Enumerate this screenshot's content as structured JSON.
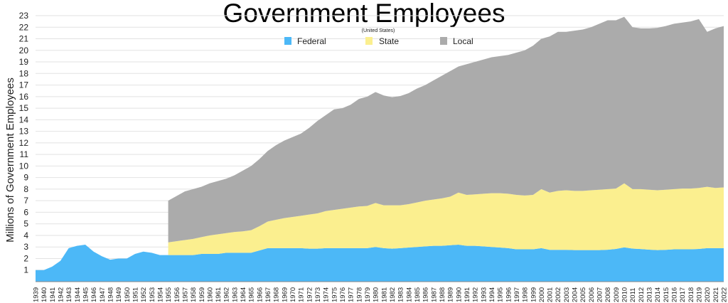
{
  "chart_data": {
    "type": "area",
    "stacked": true,
    "title": "Government Employees",
    "subtitle": "(United States)",
    "xlabel": "",
    "ylabel": "Millions of Government Employees",
    "ylim": [
      0,
      23
    ],
    "yticks": [
      1,
      2,
      3,
      4,
      5,
      6,
      7,
      8,
      9,
      10,
      11,
      12,
      13,
      14,
      15,
      16,
      17,
      18,
      19,
      20,
      21,
      22,
      23
    ],
    "grid": true,
    "legend": "top-center",
    "x": [
      1939,
      1940,
      1941,
      1942,
      1943,
      1944,
      1945,
      1946,
      1947,
      1948,
      1949,
      1950,
      1951,
      1952,
      1953,
      1954,
      1955,
      1956,
      1957,
      1958,
      1959,
      1960,
      1961,
      1962,
      1963,
      1964,
      1965,
      1966,
      1967,
      1968,
      1969,
      1970,
      1971,
      1972,
      1973,
      1974,
      1975,
      1976,
      1977,
      1978,
      1979,
      1980,
      1981,
      1982,
      1983,
      1984,
      1985,
      1986,
      1987,
      1988,
      1989,
      1990,
      1991,
      1992,
      1993,
      1994,
      1995,
      1996,
      1997,
      1998,
      1999,
      2000,
      2001,
      2002,
      2003,
      2004,
      2005,
      2006,
      2007,
      2008,
      2009,
      2010,
      2011,
      2012,
      2013,
      2014,
      2015,
      2016,
      2017,
      2018,
      2019,
      2020,
      2021,
      2022
    ],
    "series": [
      {
        "name": "Federal",
        "color": "#4cb8f7",
        "values": [
          1.0,
          1.0,
          1.3,
          1.8,
          2.9,
          3.1,
          3.2,
          2.6,
          2.2,
          1.9,
          2.0,
          2.0,
          2.4,
          2.6,
          2.5,
          2.3,
          2.3,
          2.3,
          2.3,
          2.3,
          2.4,
          2.4,
          2.4,
          2.5,
          2.5,
          2.5,
          2.5,
          2.7,
          2.9,
          2.9,
          2.9,
          2.9,
          2.9,
          2.85,
          2.85,
          2.9,
          2.9,
          2.9,
          2.9,
          2.9,
          2.9,
          3.0,
          2.9,
          2.85,
          2.9,
          2.95,
          3.0,
          3.05,
          3.1,
          3.1,
          3.15,
          3.2,
          3.1,
          3.1,
          3.05,
          3.0,
          2.95,
          2.9,
          2.8,
          2.8,
          2.8,
          2.9,
          2.75,
          2.75,
          2.75,
          2.73,
          2.73,
          2.73,
          2.73,
          2.76,
          2.83,
          2.97,
          2.86,
          2.82,
          2.77,
          2.73,
          2.75,
          2.8,
          2.8,
          2.8,
          2.83,
          2.9,
          2.9,
          2.9
        ]
      },
      {
        "name": "State",
        "color": "#fbef8f",
        "values": [
          null,
          null,
          null,
          null,
          null,
          null,
          null,
          null,
          null,
          null,
          null,
          null,
          null,
          null,
          null,
          null,
          1.1,
          1.2,
          1.3,
          1.4,
          1.45,
          1.6,
          1.7,
          1.7,
          1.8,
          1.85,
          1.95,
          2.1,
          2.3,
          2.45,
          2.6,
          2.7,
          2.8,
          2.95,
          3.05,
          3.2,
          3.3,
          3.4,
          3.5,
          3.6,
          3.65,
          3.8,
          3.7,
          3.75,
          3.7,
          3.75,
          3.85,
          3.95,
          4.0,
          4.1,
          4.2,
          4.5,
          4.4,
          4.45,
          4.55,
          4.65,
          4.7,
          4.7,
          4.7,
          4.65,
          4.7,
          5.1,
          4.95,
          5.1,
          5.15,
          5.12,
          5.12,
          5.17,
          5.22,
          5.24,
          5.22,
          5.53,
          5.14,
          5.18,
          5.18,
          5.17,
          5.2,
          5.2,
          5.25,
          5.25,
          5.27,
          5.3,
          5.2,
          5.25
        ]
      },
      {
        "name": "Local",
        "color": "#ababab",
        "values": [
          null,
          null,
          null,
          null,
          null,
          null,
          null,
          null,
          null,
          null,
          null,
          null,
          null,
          null,
          null,
          null,
          3.6,
          3.9,
          4.2,
          4.3,
          4.35,
          4.5,
          4.6,
          4.7,
          4.9,
          5.25,
          5.55,
          5.8,
          6.1,
          6.45,
          6.7,
          6.9,
          7.1,
          7.5,
          8.0,
          8.3,
          8.7,
          8.7,
          8.9,
          9.3,
          9.45,
          9.6,
          9.5,
          9.35,
          9.45,
          9.6,
          9.85,
          10.0,
          10.3,
          10.6,
          10.85,
          10.9,
          11.3,
          11.45,
          11.6,
          11.75,
          11.85,
          12.0,
          12.3,
          12.55,
          12.9,
          13.0,
          13.5,
          13.75,
          13.7,
          13.85,
          13.95,
          14.1,
          14.35,
          14.6,
          14.55,
          14.4,
          14.0,
          13.9,
          13.95,
          14.05,
          14.15,
          14.3,
          14.35,
          14.45,
          14.6,
          13.4,
          13.8,
          13.95
        ]
      }
    ]
  }
}
